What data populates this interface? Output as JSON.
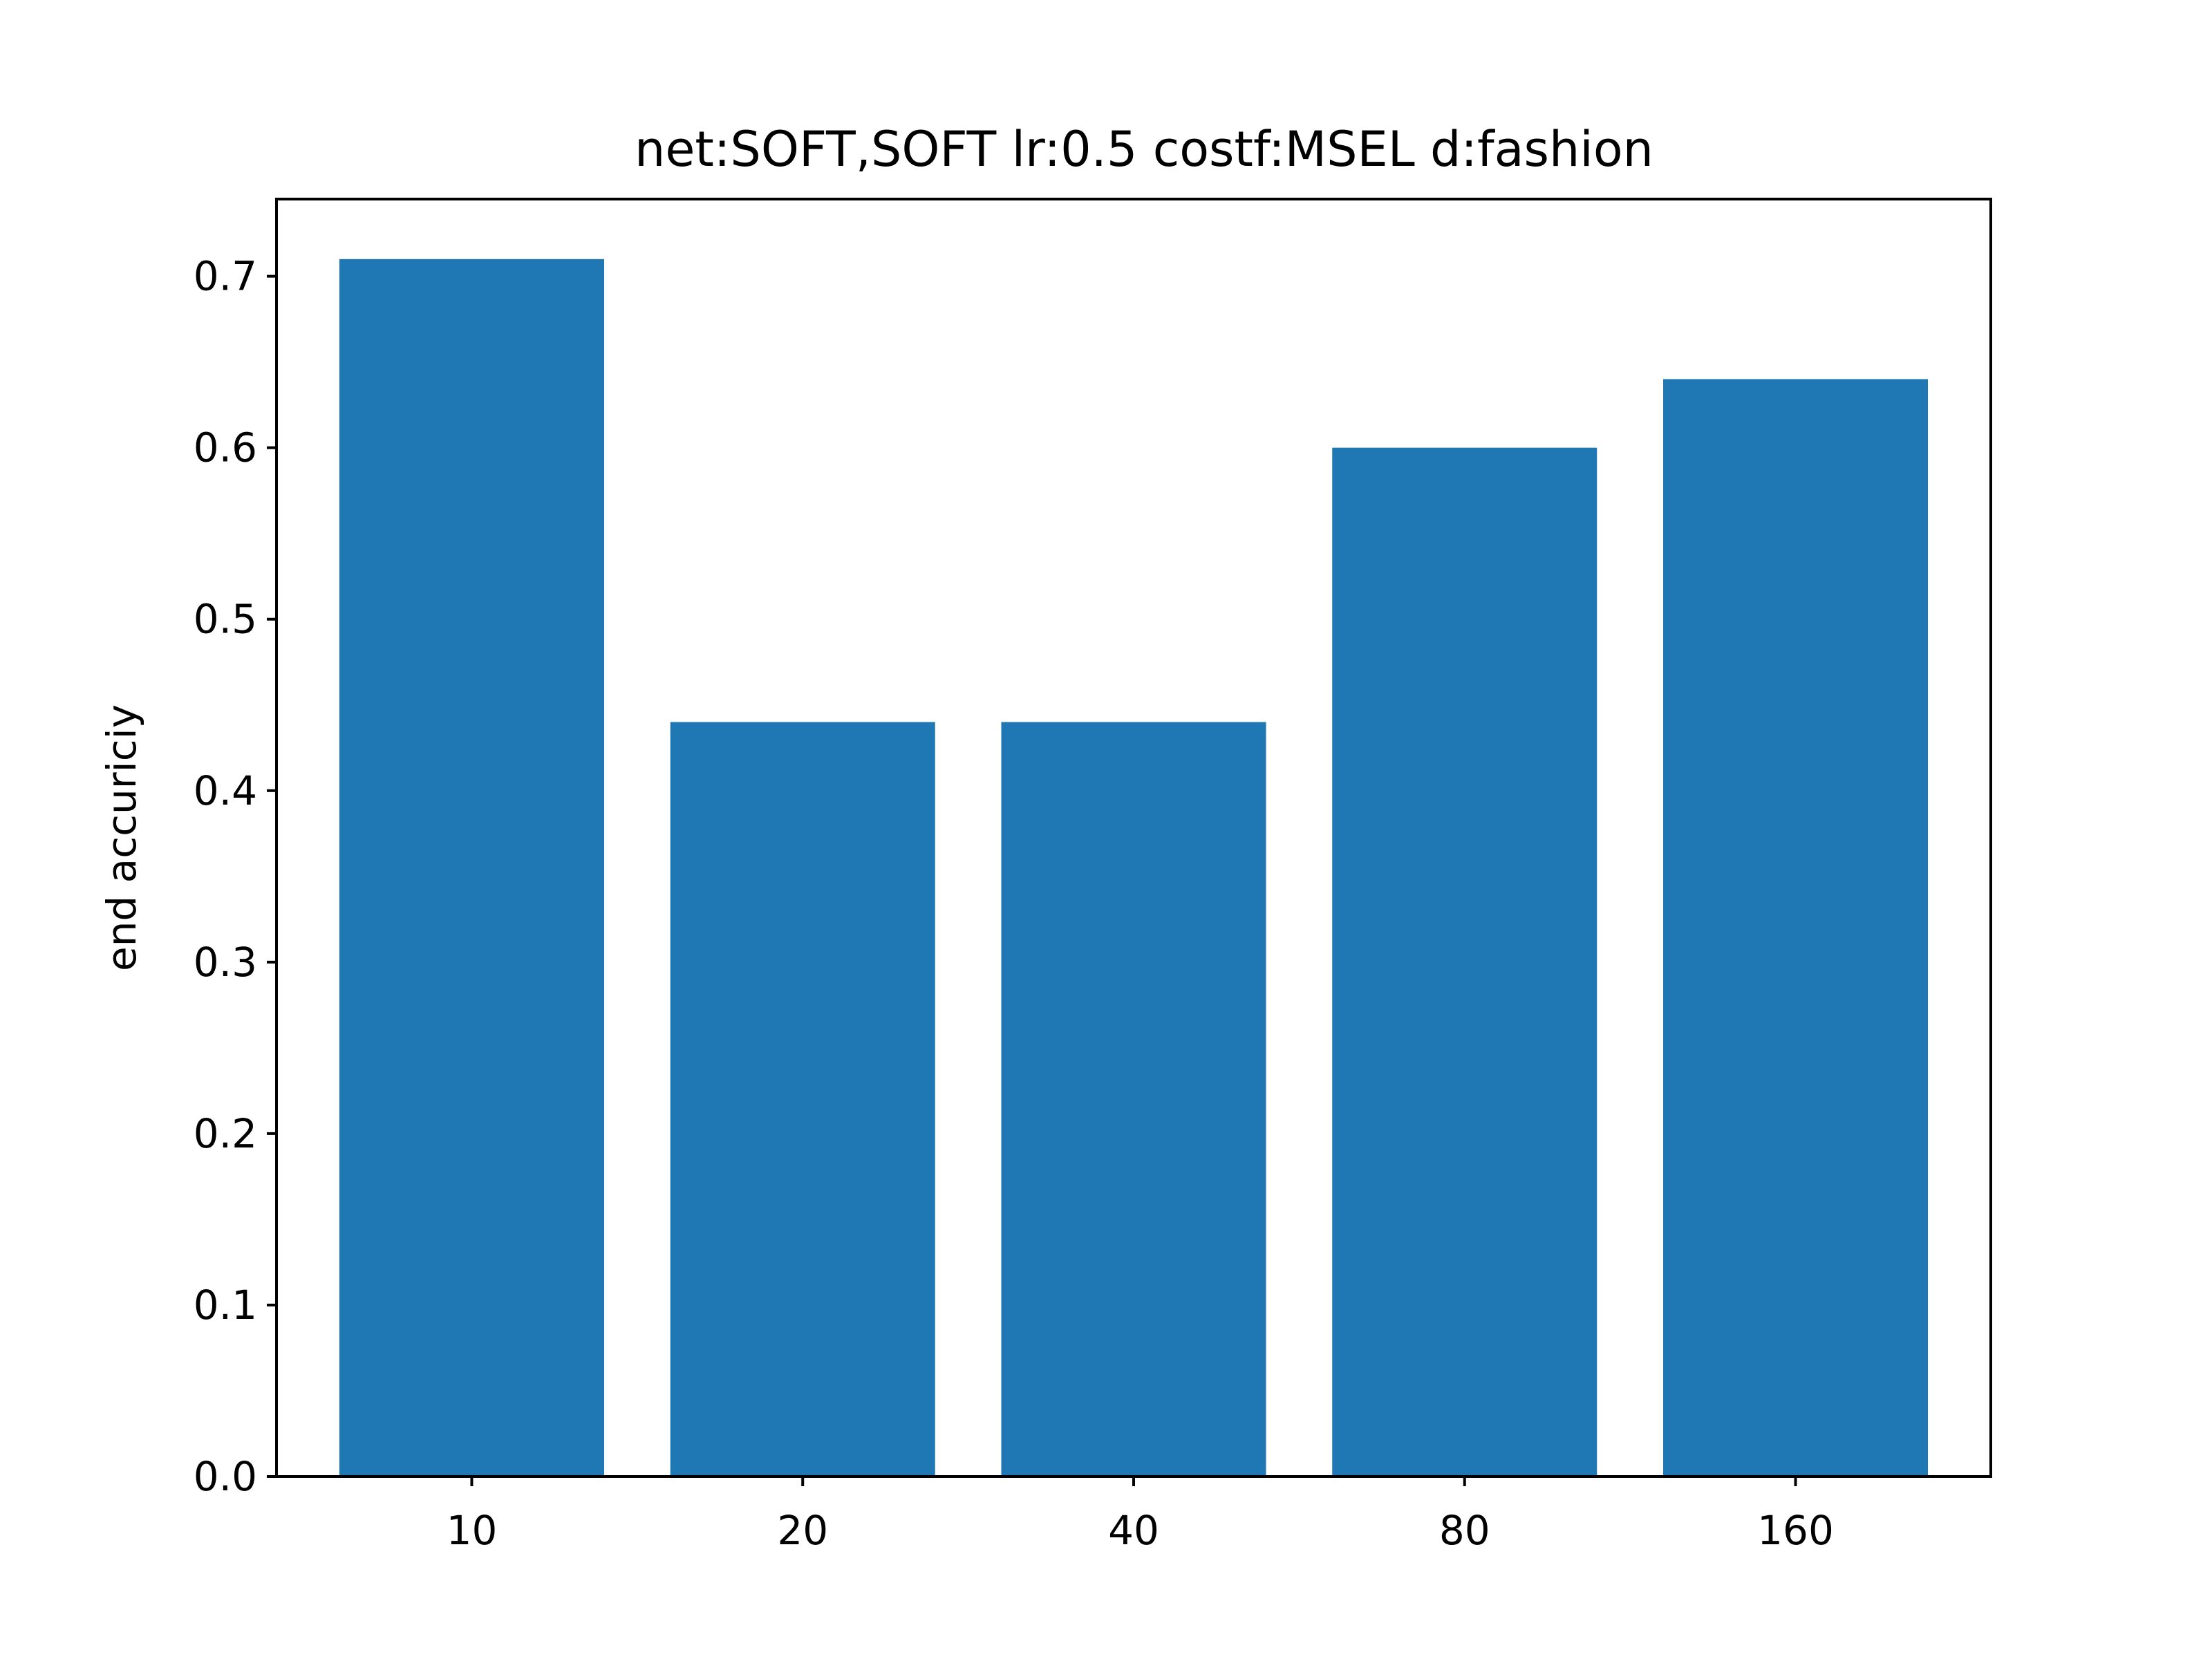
{
  "chart_data": {
    "type": "bar",
    "title": "net:SOFT,SOFT lr:0.5 costf:MSEL d:fashion",
    "xlabel": "",
    "ylabel": "end accuriciy",
    "categories": [
      "10",
      "20",
      "40",
      "80",
      "160"
    ],
    "values": [
      0.71,
      0.44,
      0.44,
      0.6,
      0.64
    ],
    "ylim": [
      0.0,
      0.745
    ],
    "yticks": [
      0.0,
      0.1,
      0.2,
      0.3,
      0.4,
      0.5,
      0.6,
      0.7
    ],
    "ytick_labels": [
      "0.0",
      "0.1",
      "0.2",
      "0.3",
      "0.4",
      "0.5",
      "0.6",
      "0.7"
    ],
    "grid": false,
    "bar_color": "#1f77b4"
  }
}
